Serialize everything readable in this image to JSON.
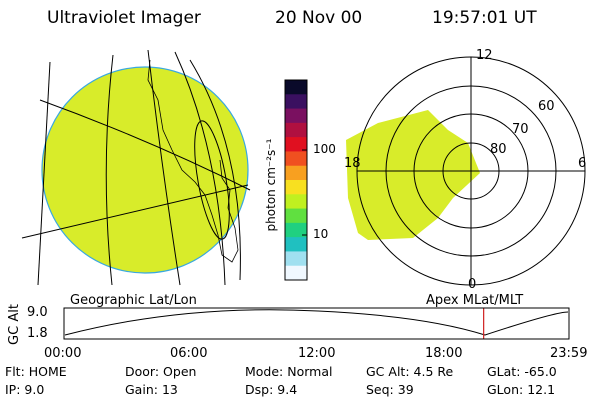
{
  "header": {
    "title": "Ultraviolet Imager",
    "date": "20 Nov 00",
    "time": "19:57:01 UT"
  },
  "colorbar": {
    "label": "photon cm⁻²s⁻¹",
    "ticks": [
      "100",
      "10"
    ],
    "scale": "log",
    "colors": [
      "#0a0a2a",
      "#3a1060",
      "#7a1060",
      "#b01040",
      "#e01020",
      "#f05020",
      "#f8a020",
      "#f8e020",
      "#c0f020",
      "#60e040",
      "#20d080",
      "#20c0c0",
      "#a0e0f0",
      "#f0f8ff"
    ]
  },
  "left_panel": {
    "label": "Geographic Lat/Lon",
    "disk_color": "#d8ec2a",
    "limb_color": "#39a8e0"
  },
  "right_panel": {
    "label": "Apex MLat/MLT",
    "mlt_labels": [
      "12",
      "6",
      "0",
      "18"
    ],
    "mlat_labels": [
      "60",
      "70",
      "80"
    ],
    "region_color": "#d8ec2a"
  },
  "timeline": {
    "axis_label": "GC Alt",
    "y_ticks": [
      "9.0",
      "1.8"
    ],
    "x_ticks": [
      "00:00",
      "06:00",
      "12:00",
      "18:00",
      "23:59"
    ],
    "current_time_fraction": 0.831,
    "marker_color": "#d02020"
  },
  "info": {
    "row1": [
      {
        "key": "Flt:",
        "value": "HOME"
      },
      {
        "key": "Door:",
        "value": "Open"
      },
      {
        "key": "Mode:",
        "value": "Normal"
      },
      {
        "key": "GC Alt:",
        "value": "4.5 Re"
      },
      {
        "key": "GLat:",
        "value": "-65.0"
      }
    ],
    "row2": [
      {
        "key": "IP:",
        "value": "9.0"
      },
      {
        "key": "Gain:",
        "value": "13"
      },
      {
        "key": "Dsp:",
        "value": "9.4"
      },
      {
        "key": "Seq:",
        "value": "39"
      },
      {
        "key": "GLon:",
        "value": "12.1"
      }
    ]
  }
}
